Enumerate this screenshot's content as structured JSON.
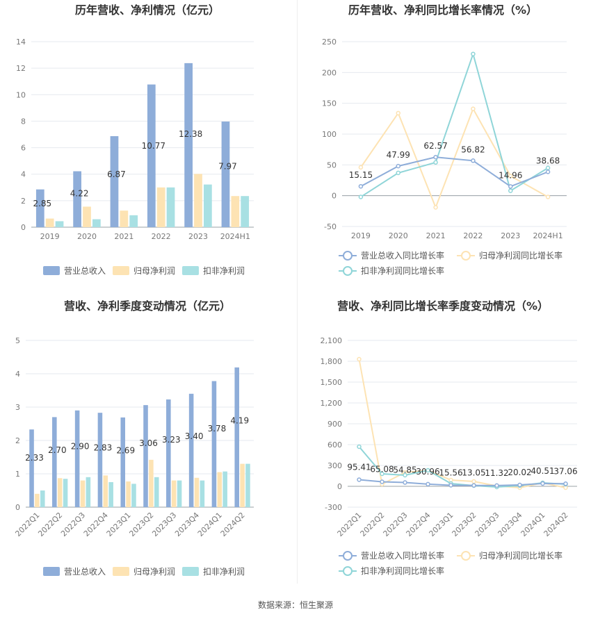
{
  "source": "数据来源：恒生聚源",
  "colors": {
    "revenue": "#8eadd9",
    "net_profit": "#fde3b3",
    "deducted_profit": "#8fd5d8",
    "grid": "#e6e9ef",
    "axis": "#9aa0a6"
  },
  "chart_data": [
    {
      "type": "bar",
      "title": "历年营收、净利情况（亿元）",
      "categories": [
        "2019",
        "2020",
        "2021",
        "2022",
        "2023",
        "2024H1"
      ],
      "ylim": [
        0,
        14
      ],
      "yticks": [
        0,
        2,
        4,
        6,
        8,
        10,
        12,
        14
      ],
      "grid": true,
      "legend": "bottom",
      "series": [
        {
          "name": "营业总收入",
          "color": "#8eadd9",
          "values": [
            2.85,
            4.22,
            6.87,
            10.77,
            12.38,
            7.97
          ],
          "labels": [
            "2.85",
            "4.22",
            "6.87",
            "10.77",
            "12.38",
            "7.97"
          ]
        },
        {
          "name": "归母净利润",
          "color": "#fde3b3",
          "values": [
            0.65,
            1.55,
            1.25,
            3.0,
            4.02,
            2.35
          ]
        },
        {
          "name": "扣非净利润",
          "color": "#a8e0e3",
          "values": [
            0.45,
            0.6,
            0.9,
            3.0,
            3.22,
            2.35
          ]
        }
      ]
    },
    {
      "type": "line",
      "title": "历年营收、净利同比增长率情况（%）",
      "categories": [
        "2019",
        "2020",
        "2021",
        "2022",
        "2023",
        "2024H1"
      ],
      "ylim": [
        -50,
        250
      ],
      "yticks": [
        -50,
        0,
        50,
        100,
        150,
        200,
        250
      ],
      "grid": true,
      "legend": "bottom",
      "series": [
        {
          "name": "营业总收入同比增长率",
          "color": "#8eadd9",
          "values": [
            15.15,
            47.99,
            62.57,
            56.82,
            14.96,
            38.68
          ],
          "labels": [
            "15.15",
            "47.99",
            "62.57",
            "56.82",
            "14.96",
            "38.68"
          ]
        },
        {
          "name": "归母净利润同比增长率",
          "color": "#fde3b3",
          "values": [
            46,
            134,
            -19,
            141,
            32,
            -2
          ]
        },
        {
          "name": "扣非净利润同比增长率",
          "color": "#8fd5d8",
          "values": [
            -2,
            37,
            54,
            230,
            8,
            45
          ]
        }
      ]
    },
    {
      "type": "bar",
      "title": "营收、净利季度变动情况（亿元）",
      "categories": [
        "2022Q1",
        "2022Q2",
        "2022Q3",
        "2022Q4",
        "2023Q1",
        "2023Q2",
        "2023Q3",
        "2023Q4",
        "2024Q1",
        "2024Q2"
      ],
      "ylim": [
        0,
        5
      ],
      "yticks": [
        0,
        1,
        2,
        3,
        4,
        5
      ],
      "grid": true,
      "legend": "bottom",
      "series": [
        {
          "name": "营业总收入",
          "color": "#8eadd9",
          "values": [
            2.33,
            2.7,
            2.9,
            2.83,
            2.69,
            3.06,
            3.23,
            3.4,
            3.78,
            4.19
          ],
          "labels": [
            "2.33",
            "2.70",
            "2.90",
            "2.83",
            "2.69",
            "3.06",
            "3.23",
            "3.40",
            "3.78",
            "4.19"
          ]
        },
        {
          "name": "归母净利润",
          "color": "#fde3b3",
          "values": [
            0.4,
            0.87,
            0.8,
            0.95,
            0.77,
            1.42,
            0.8,
            0.88,
            1.05,
            1.3
          ]
        },
        {
          "name": "扣非净利润",
          "color": "#a8e0e3",
          "values": [
            0.5,
            0.85,
            0.9,
            0.75,
            0.7,
            0.9,
            0.8,
            0.8,
            1.07,
            1.3
          ]
        }
      ]
    },
    {
      "type": "line",
      "title": "营收、净利同比增长率季度变动情况（%）",
      "categories": [
        "2022Q1",
        "2022Q2",
        "2022Q3",
        "2022Q4",
        "2023Q1",
        "2023Q2",
        "2023Q3",
        "2023Q4",
        "2024Q1",
        "2024Q2"
      ],
      "ylim": [
        -300,
        2100
      ],
      "yticks": [
        -300,
        0,
        300,
        600,
        900,
        1200,
        1500,
        1800,
        2100
      ],
      "ytick_labels": [
        "-300",
        "0",
        "300",
        "600",
        "900",
        "1,200",
        "1,500",
        "1,800",
        "2,100"
      ],
      "grid": true,
      "legend": "bottom",
      "series": [
        {
          "name": "营业总收入同比增长率",
          "color": "#8eadd9",
          "values": [
            95.41,
            65.08,
            54.85,
            30.96,
            15.56,
            13.05,
            11.32,
            20.02,
            40.51,
            37.06
          ],
          "labels": [
            "95.41",
            "65.08",
            "54.85",
            "30.96",
            "15.56",
            "13.05",
            "11.32",
            "20.02",
            "40.51",
            "37.06"
          ]
        },
        {
          "name": "归母净利润同比增长率",
          "color": "#fde3b3",
          "values": [
            1830,
            30,
            200,
            230,
            90,
            70,
            5,
            -20,
            50,
            -20
          ]
        },
        {
          "name": "扣非净利润同比增长率",
          "color": "#8fd5d8",
          "values": [
            570,
            180,
            160,
            230,
            40,
            10,
            -10,
            10,
            50,
            30
          ]
        }
      ]
    }
  ]
}
